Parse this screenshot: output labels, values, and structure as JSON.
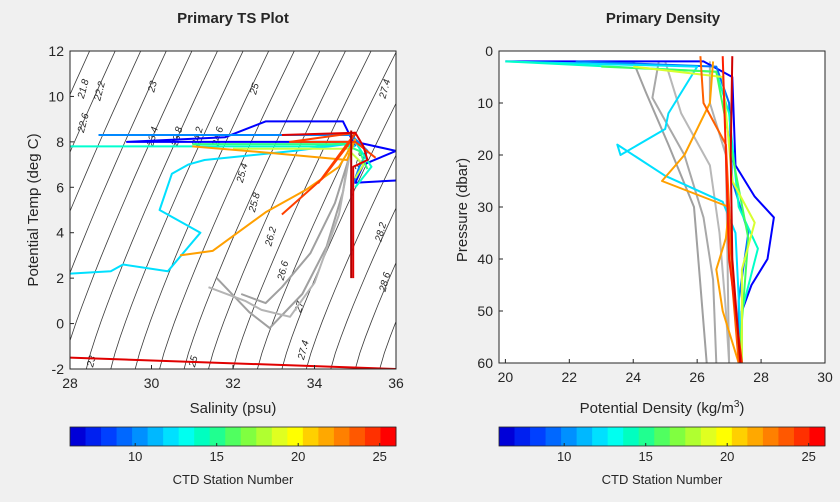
{
  "chart_data": [
    {
      "type": "line",
      "title": "Primary TS Plot",
      "xlabel": "Salinity (psu)",
      "ylabel": "Potential Temp (deg C)",
      "xlim": [
        28,
        36
      ],
      "ylim": [
        -2,
        12
      ],
      "xticks": [
        "28",
        "30",
        "32",
        "34",
        "36"
      ],
      "yticks": [
        "-2",
        "0",
        "2",
        "4",
        "6",
        "8",
        "10",
        "12"
      ],
      "isopycnal_labels": [
        {
          "text": "21.8",
          "s": 28.4,
          "t": 10.3
        },
        {
          "text": "22.2",
          "s": 28.8,
          "t": 10.2
        },
        {
          "text": "22.6",
          "s": 28.4,
          "t": 8.8
        },
        {
          "text": "23",
          "s": 30.1,
          "t": 10.4
        },
        {
          "text": "23.4",
          "s": 30.1,
          "t": 8.2
        },
        {
          "text": "23.8",
          "s": 30.7,
          "t": 8.2
        },
        {
          "text": "24.2",
          "s": 31.2,
          "t": 8.2
        },
        {
          "text": "24.6",
          "s": 31.7,
          "t": 8.2
        },
        {
          "text": "25",
          "s": 32.6,
          "t": 10.3
        },
        {
          "text": "25.4",
          "s": 32.3,
          "t": 6.6
        },
        {
          "text": "25.8",
          "s": 32.6,
          "t": 5.3
        },
        {
          "text": "26.2",
          "s": 33.0,
          "t": 3.8
        },
        {
          "text": "26.6",
          "s": 33.3,
          "t": 2.3
        },
        {
          "text": "27",
          "s": 33.7,
          "t": 0.7
        },
        {
          "text": "27.4",
          "s": 33.8,
          "t": -1.2
        },
        {
          "text": "27.4",
          "s": 35.8,
          "t": 10.3
        },
        {
          "text": "27.8",
          "s": 35.2,
          "t": 7.1
        },
        {
          "text": "28.2",
          "s": 35.7,
          "t": 4.0
        },
        {
          "text": "28.6",
          "s": 35.8,
          "t": 1.8
        },
        {
          "text": "23",
          "s": 28.6,
          "t": -1.7
        },
        {
          "text": "25",
          "s": 31.1,
          "t": -1.7
        }
      ],
      "series": [
        {
          "color": "#a0a0a0",
          "points": [
            [
              31.6,
              2.0
            ],
            [
              32.4,
              0.5
            ],
            [
              32.9,
              -0.2
            ],
            [
              33.7,
              1.3
            ],
            [
              34.3,
              3.4
            ],
            [
              34.7,
              5.8
            ],
            [
              34.85,
              7.5
            ]
          ]
        },
        {
          "color": "#a0a0a0",
          "points": [
            [
              32.2,
              1.3
            ],
            [
              32.8,
              0.9
            ],
            [
              33.2,
              1.6
            ],
            [
              33.9,
              3.1
            ],
            [
              34.5,
              5.3
            ],
            [
              34.9,
              7.6
            ]
          ]
        },
        {
          "color": "#b4b4b4",
          "points": [
            [
              31.4,
              1.6
            ],
            [
              32.3,
              1.0
            ],
            [
              32.7,
              0.6
            ],
            [
              33.4,
              0.3
            ],
            [
              34.0,
              1.8
            ],
            [
              34.6,
              4.8
            ],
            [
              34.9,
              7.8
            ]
          ]
        },
        {
          "color": "#0000ff",
          "points": [
            [
              35.0,
              7.8
            ],
            [
              34.7,
              8.9
            ],
            [
              32.8,
              8.9
            ],
            [
              31.8,
              8.2
            ],
            [
              29.4,
              8.0
            ],
            [
              35.0,
              8.0
            ],
            [
              36.0,
              7.6
            ],
            [
              35.2,
              7.0
            ],
            [
              35.0,
              6.2
            ],
            [
              36.0,
              6.3
            ]
          ]
        },
        {
          "color": "#0088ff",
          "points": [
            [
              28.7,
              8.3
            ],
            [
              34.9,
              8.3
            ],
            [
              35.3,
              7.6
            ],
            [
              35.1,
              6.9
            ],
            [
              34.9,
              5.9
            ],
            [
              34.9,
              3.0
            ]
          ]
        },
        {
          "color": "#00e0ff",
          "points": [
            [
              28.0,
              2.2
            ],
            [
              29.0,
              2.3
            ],
            [
              29.3,
              2.6
            ],
            [
              30.4,
              2.3
            ],
            [
              31.2,
              4.0
            ],
            [
              30.2,
              5.0
            ],
            [
              30.5,
              6.6
            ],
            [
              30.9,
              7.0
            ],
            [
              31.3,
              7.2
            ],
            [
              33.5,
              7.6
            ],
            [
              34.8,
              7.9
            ],
            [
              35.0,
              7.8
            ]
          ]
        },
        {
          "color": "#00ffd0",
          "points": [
            [
              28.0,
              7.8
            ],
            [
              34.0,
              7.8
            ],
            [
              35.0,
              8.0
            ],
            [
              35.4,
              6.9
            ],
            [
              35.0,
              6.0
            ]
          ]
        },
        {
          "color": "#30ff80",
          "points": [
            [
              31.0,
              7.9
            ],
            [
              34.7,
              7.9
            ],
            [
              35.1,
              7.6
            ],
            [
              35.3,
              6.8
            ]
          ]
        },
        {
          "color": "#c8ff40",
          "points": [
            [
              32.0,
              7.7
            ],
            [
              34.8,
              7.7
            ],
            [
              35.2,
              7.0
            ],
            [
              35.0,
              6.4
            ]
          ]
        },
        {
          "color": "#ffa000",
          "points": [
            [
              30.7,
              3.0
            ],
            [
              31.5,
              3.2
            ],
            [
              32.8,
              4.9
            ],
            [
              33.8,
              5.9
            ],
            [
              34.6,
              6.9
            ],
            [
              35.0,
              8.1
            ],
            [
              34.8,
              7.2
            ],
            [
              33.0,
              7.5
            ],
            [
              31.0,
              7.8
            ]
          ]
        },
        {
          "color": "#ff4000",
          "points": [
            [
              33.2,
              4.8
            ],
            [
              34.2,
              6.4
            ],
            [
              34.8,
              7.8
            ],
            [
              35.0,
              8.4
            ],
            [
              34.1,
              6.2
            ],
            [
              35.0,
              8.4
            ],
            [
              33.4,
              8.0
            ],
            [
              35.0,
              8.0
            ],
            [
              35.5,
              7.3
            ]
          ]
        },
        {
          "color": "#e00000",
          "points": [
            [
              33.2,
              8.3
            ],
            [
              35.0,
              8.4
            ],
            [
              35.2,
              7.8
            ],
            [
              35.3,
              7.2
            ],
            [
              34.95,
              6.9
            ],
            [
              34.95,
              2.0
            ]
          ]
        },
        {
          "color": "#e00000",
          "points": [
            [
              28.0,
              -1.5
            ],
            [
              36.0,
              -2.0
            ]
          ]
        },
        {
          "color": "#b00000",
          "points": [
            [
              34.9,
              8.5
            ],
            [
              34.9,
              2.0
            ]
          ]
        }
      ]
    },
    {
      "type": "line",
      "title": "Primary Density",
      "xlabel": "Potential Density (kg/m",
      "xlabel_sup": "3",
      "xlabel_end": ")",
      "ylabel": "Pressure (dbar)",
      "xlim": [
        19.8,
        30
      ],
      "ylim": [
        0,
        60
      ],
      "yreversed": true,
      "xticks": [
        "20",
        "22",
        "24",
        "26",
        "28",
        "30"
      ],
      "yticks": [
        "0",
        "10",
        "20",
        "30",
        "40",
        "50",
        "60"
      ],
      "series": [
        {
          "color": "#a0a0a0",
          "points": [
            [
              24.0,
              2
            ],
            [
              24.4,
              8
            ],
            [
              25.1,
              18
            ],
            [
              25.9,
              30
            ],
            [
              26.1,
              45
            ],
            [
              26.3,
              60
            ]
          ]
        },
        {
          "color": "#a8a8a8",
          "points": [
            [
              24.8,
              2
            ],
            [
              24.6,
              9
            ],
            [
              25.6,
              20
            ],
            [
              26.2,
              32
            ],
            [
              26.5,
              44
            ],
            [
              26.6,
              60
            ]
          ]
        },
        {
          "color": "#b8b8b8",
          "points": [
            [
              25.0,
              2
            ],
            [
              25.5,
              12
            ],
            [
              26.4,
              22
            ],
            [
              26.7,
              35
            ],
            [
              26.9,
              50
            ],
            [
              27.0,
              60
            ]
          ]
        },
        {
          "color": "#b0b0b0",
          "points": [
            [
              26.4,
              2
            ],
            [
              26.4,
              10
            ],
            [
              26.9,
              20
            ],
            [
              27.0,
              60
            ]
          ]
        },
        {
          "color": "#0000ff",
          "points": [
            [
              20.0,
              2
            ],
            [
              26.2,
              2
            ],
            [
              27.1,
              5
            ],
            [
              27.2,
              22
            ],
            [
              27.8,
              28
            ],
            [
              28.4,
              32
            ],
            [
              28.2,
              40
            ],
            [
              27.7,
              45
            ],
            [
              27.4,
              50
            ],
            [
              27.4,
              60
            ]
          ]
        },
        {
          "color": "#0070ff",
          "points": [
            [
              22.2,
              2
            ],
            [
              26.6,
              3
            ],
            [
              27.0,
              10
            ],
            [
              27.1,
              25
            ],
            [
              27.6,
              35
            ],
            [
              27.3,
              48
            ],
            [
              27.3,
              60
            ]
          ]
        },
        {
          "color": "#00e0ff",
          "points": [
            [
              20.0,
              2
            ],
            [
              26.0,
              3
            ],
            [
              25.1,
              12
            ],
            [
              25.0,
              15
            ],
            [
              23.6,
              20
            ],
            [
              23.5,
              18
            ],
            [
              25.0,
              24
            ],
            [
              26.8,
              29
            ],
            [
              27.2,
              35
            ],
            [
              27.4,
              60
            ]
          ]
        },
        {
          "color": "#00ffc8",
          "points": [
            [
              20.0,
              2
            ],
            [
              26.6,
              4
            ],
            [
              27.0,
              12
            ],
            [
              27.3,
              30
            ],
            [
              27.9,
              38
            ],
            [
              27.4,
              50
            ],
            [
              27.4,
              60
            ]
          ]
        },
        {
          "color": "#40ff60",
          "points": [
            [
              23.0,
              3
            ],
            [
              26.6,
              4
            ],
            [
              27.1,
              20
            ],
            [
              27.6,
              36
            ],
            [
              27.3,
              60
            ]
          ]
        },
        {
          "color": "#d8ff30",
          "points": [
            [
              24.0,
              3
            ],
            [
              26.8,
              5
            ],
            [
              27.1,
              25
            ],
            [
              27.8,
              33
            ],
            [
              27.4,
              42
            ],
            [
              27.4,
              60
            ]
          ]
        },
        {
          "color": "#ffa000",
          "points": [
            [
              26.5,
              2
            ],
            [
              26.4,
              10
            ],
            [
              25.6,
              20
            ],
            [
              24.9,
              25
            ],
            [
              27.0,
              30
            ],
            [
              26.9,
              36
            ],
            [
              26.6,
              42
            ],
            [
              26.8,
              50
            ],
            [
              27.3,
              60
            ]
          ]
        },
        {
          "color": "#ff6000",
          "points": [
            [
              26.1,
              1
            ],
            [
              26.2,
              10
            ],
            [
              26.9,
              18
            ],
            [
              27.0,
              30
            ],
            [
              27.1,
              45
            ],
            [
              27.3,
              60
            ]
          ]
        },
        {
          "color": "#ff2000",
          "points": [
            [
              26.8,
              1
            ],
            [
              26.9,
              20
            ],
            [
              27.0,
              40
            ],
            [
              27.4,
              60
            ]
          ]
        },
        {
          "color": "#d00000",
          "points": [
            [
              27.1,
              1
            ],
            [
              27.05,
              20
            ],
            [
              27.1,
              40
            ],
            [
              27.35,
              60
            ]
          ]
        }
      ]
    }
  ],
  "colorbar": {
    "label": "CTD Station Number",
    "ticks": [
      "10",
      "15",
      "20",
      "25"
    ],
    "tick_values": [
      10,
      15,
      20,
      25
    ],
    "range": [
      6,
      26
    ],
    "colors": [
      "#0000d8",
      "#0020f0",
      "#0040ff",
      "#0068ff",
      "#0090ff",
      "#00b8ff",
      "#00e0ff",
      "#00fff0",
      "#00ffc0",
      "#20ff90",
      "#50ff60",
      "#80ff40",
      "#b0ff30",
      "#e0ff20",
      "#ffff00",
      "#ffd000",
      "#ffa800",
      "#ff8000",
      "#ff5800",
      "#ff3000",
      "#ff0000"
    ]
  }
}
